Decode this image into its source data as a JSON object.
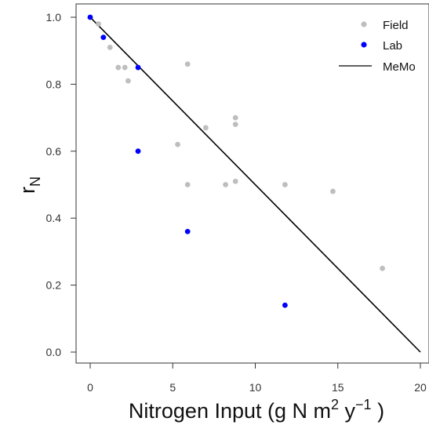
{
  "chart_data": {
    "type": "scatter",
    "xlim": [
      0,
      20
    ],
    "ylim": [
      0,
      1.0
    ],
    "x_ticks": [
      0,
      5,
      10,
      15,
      20
    ],
    "y_ticks": [
      0.0,
      0.2,
      0.4,
      0.6,
      0.8,
      1.0
    ],
    "x_tick_labels": [
      "0",
      "5",
      "10",
      "15",
      "20"
    ],
    "y_tick_labels": [
      "0.0",
      "0.2",
      "0.4",
      "0.6",
      "0.8",
      "1.0"
    ],
    "xlabel_main": "Nitrogen Input (g N m",
    "xlabel_sup1": "2",
    "xlabel_mid": " y",
    "xlabel_sup2": "−1",
    "xlabel_end": " )",
    "ylabel_main": "r",
    "ylabel_sub": "N",
    "legend_position": "top-right",
    "series": [
      {
        "name": "Field",
        "kind": "points",
        "color": "#bebebe",
        "points": [
          [
            0.0,
            1.0
          ],
          [
            0.5,
            0.98
          ],
          [
            1.2,
            0.91
          ],
          [
            1.7,
            0.85
          ],
          [
            2.1,
            0.85
          ],
          [
            2.3,
            0.81
          ],
          [
            5.3,
            0.62
          ],
          [
            5.9,
            0.86
          ],
          [
            5.9,
            0.5
          ],
          [
            7.0,
            0.67
          ],
          [
            8.2,
            0.5
          ],
          [
            8.8,
            0.7
          ],
          [
            8.8,
            0.68
          ],
          [
            8.8,
            0.51
          ],
          [
            11.8,
            0.5
          ],
          [
            14.7,
            0.48
          ],
          [
            17.7,
            0.25
          ]
        ]
      },
      {
        "name": "Lab",
        "kind": "points",
        "color": "#0000ff",
        "points": [
          [
            0.0,
            1.0
          ],
          [
            0.8,
            0.94
          ],
          [
            2.9,
            0.85
          ],
          [
            2.9,
            0.6
          ],
          [
            5.9,
            0.36
          ],
          [
            11.8,
            0.14
          ]
        ]
      },
      {
        "name": "MeMo",
        "kind": "line",
        "color": "#000000",
        "points": [
          [
            0,
            1.0
          ],
          [
            20,
            0.0
          ]
        ]
      }
    ]
  }
}
